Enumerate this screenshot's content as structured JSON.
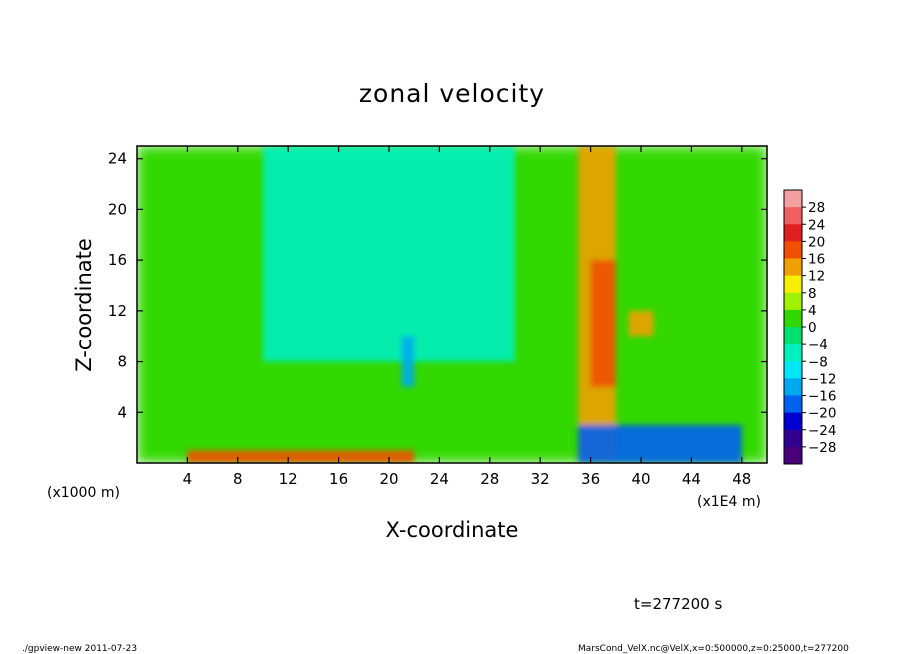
{
  "chart_data": {
    "type": "heatmap",
    "title": "zonal velocity",
    "xlabel": "X-coordinate",
    "ylabel": "Z-coordinate",
    "x_unit": "(x1E4 m)",
    "y_unit": "(x1000 m)",
    "xlim": [
      0,
      50
    ],
    "ylim": [
      0,
      25
    ],
    "x_ticks": [
      4,
      8,
      12,
      16,
      20,
      24,
      28,
      32,
      36,
      40,
      44,
      48
    ],
    "y_ticks": [
      4,
      8,
      12,
      16,
      20,
      24
    ],
    "colorbar": {
      "labels": [
        "28",
        "24",
        "20",
        "16",
        "12",
        "8",
        "4",
        "0",
        "−4",
        "−8",
        "−12",
        "−16",
        "−20",
        "−24",
        "−28"
      ],
      "levels": [
        28,
        24,
        20,
        16,
        12,
        8,
        4,
        0,
        -4,
        -8,
        -12,
        -16,
        -20,
        -24,
        -28
      ],
      "colors": [
        "#f4a0a0",
        "#f06060",
        "#e02020",
        "#f05000",
        "#f0a000",
        "#f8f000",
        "#a0f000",
        "#30d800",
        "#00e070",
        "#00f0c0",
        "#00e8f8",
        "#00a8f0",
        "#0060f0",
        "#0000d0",
        "#300090",
        "#4a0078"
      ]
    },
    "features": [
      {
        "name": "background",
        "x_range": [
          0,
          50
        ],
        "z_range": [
          0,
          25
        ],
        "value": 2
      },
      {
        "name": "weak negative upper plume",
        "x_range": [
          10,
          30
        ],
        "z_range": [
          8,
          25
        ],
        "value": -7
      },
      {
        "name": "positive jet",
        "x_range": [
          35,
          38
        ],
        "z_range": [
          0,
          25
        ],
        "value": 12
      },
      {
        "name": "strong positive core",
        "x_range": [
          36,
          38
        ],
        "z_range": [
          6,
          16
        ],
        "value": 17
      },
      {
        "name": "positive core",
        "x_range": [
          39,
          41
        ],
        "z_range": [
          10,
          12
        ],
        "value": 14
      },
      {
        "name": "strong negative near surface",
        "x_range": [
          35,
          48
        ],
        "z_range": [
          0,
          3
        ],
        "value": -20
      },
      {
        "name": "positive near surface",
        "x_range": [
          4,
          22
        ],
        "z_range": [
          0,
          1
        ],
        "value": 18
      },
      {
        "name": "negative filament",
        "x_range": [
          21,
          22
        ],
        "z_range": [
          6,
          10
        ],
        "value": -13
      }
    ]
  },
  "annotations": {
    "time": "t=277200 s",
    "footer_left": "./gpview-new   2011-07-23",
    "footer_right": "MarsCond_VelX.nc@VelX,x=0:500000,z=0:25000,t=277200"
  }
}
